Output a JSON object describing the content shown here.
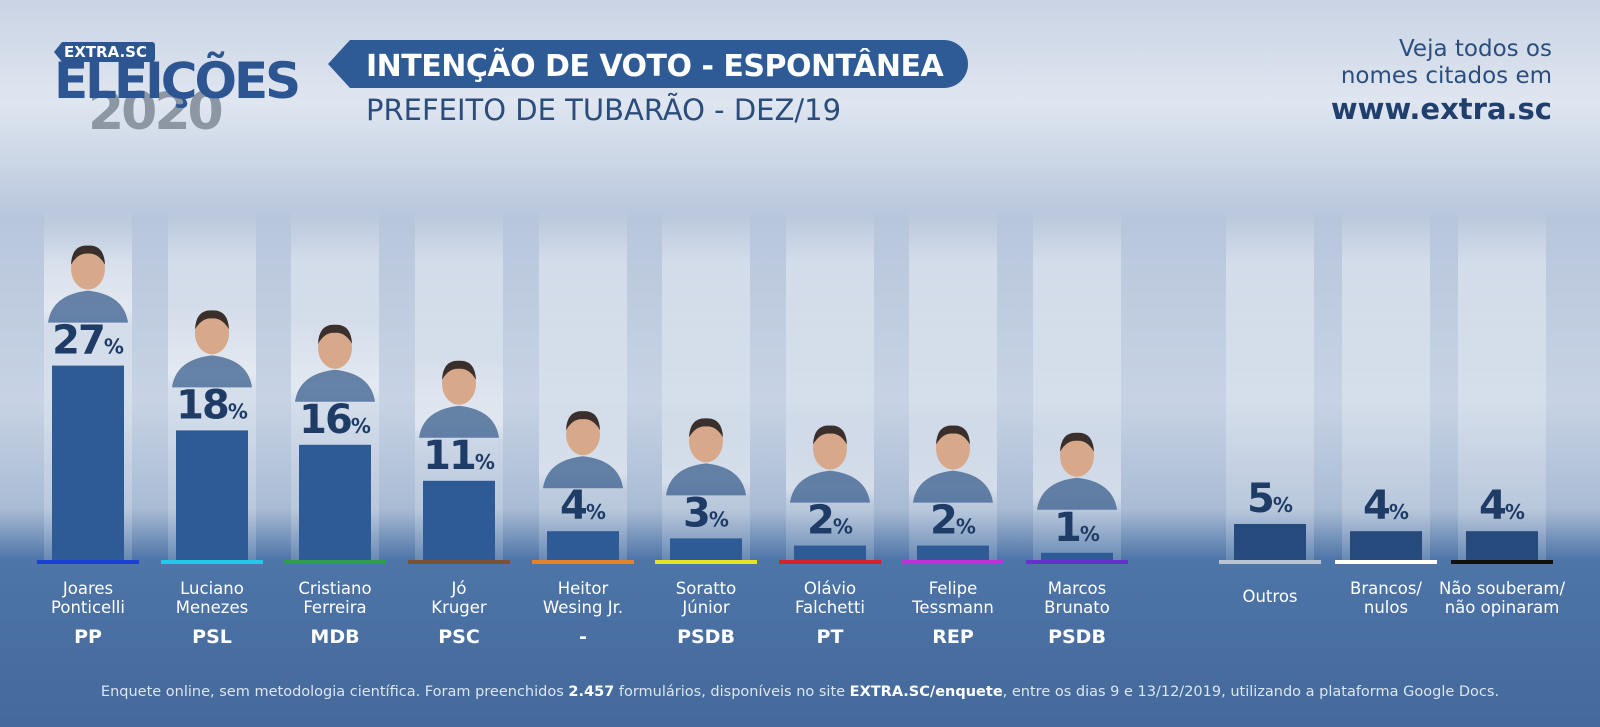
{
  "logo": {
    "tag": "EXTRA.SC",
    "word": "ELEIÇÕES",
    "year": "2020"
  },
  "header": {
    "title": "INTENÇÃO DE VOTO - ESPONTÂNEA",
    "subtitle": "PREFEITO DE TUBARÃO - DEZ/19"
  },
  "promo": {
    "line1": "Veja todos os",
    "line2": "nomes citados em",
    "url": "www.extra.sc"
  },
  "footnote": {
    "part1": "Enquete online, sem metodologia científica. Foram preenchidos ",
    "count": "2.457",
    "part2": " formulários, disponíveis no site ",
    "site": "EXTRA.SC/enquete",
    "part3": ", entre os dias 9 e 13/12/2019, utilizando a plataforma Google Docs."
  },
  "colors": {
    "bar": "#2e5b96",
    "bar_dark": "#264a7c",
    "label": "#1f3c66",
    "name": "#ffffff"
  },
  "chart_data": {
    "type": "bar",
    "title": "INTENÇÃO DE VOTO - ESPONTÂNEA",
    "subtitle": "PREFEITO DE TUBARÃO - DEZ/19",
    "unit": "%",
    "ylim": [
      0,
      30
    ],
    "bars": [
      {
        "name_lines": [
          "Joares",
          "Ponticelli"
        ],
        "party": "PP",
        "value": 27,
        "party_color": "#1a3fd6",
        "photo": true
      },
      {
        "name_lines": [
          "Luciano",
          "Menezes"
        ],
        "party": "PSL",
        "value": 18,
        "party_color": "#21c9e8",
        "photo": true
      },
      {
        "name_lines": [
          "Cristiano",
          "Ferreira"
        ],
        "party": "MDB",
        "value": 16,
        "party_color": "#2e9e4a",
        "photo": true
      },
      {
        "name_lines": [
          "Jó",
          "Kruger"
        ],
        "party": "PSC",
        "value": 11,
        "party_color": "#7a5233",
        "photo": true
      },
      {
        "name_lines": [
          "Heitor",
          "Wesing Jr."
        ],
        "party": "-",
        "value": 4,
        "party_color": "#e8822a",
        "photo": true
      },
      {
        "name_lines": [
          "Soratto",
          "Júnior"
        ],
        "party": "PSDB",
        "value": 3,
        "party_color": "#e6e21f",
        "photo": true
      },
      {
        "name_lines": [
          "Olávio",
          "Falchetti"
        ],
        "party": "PT",
        "value": 2,
        "party_color": "#d6202a",
        "photo": true
      },
      {
        "name_lines": [
          "Felipe",
          "Tessmann"
        ],
        "party": "REP",
        "value": 2,
        "party_color": "#c12fd6",
        "photo": true
      },
      {
        "name_lines": [
          "Marcos",
          "Brunato"
        ],
        "party": "PSDB",
        "value": 1,
        "party_color": "#6a2fd0",
        "photo": true
      },
      {
        "name_lines": [
          "Outros"
        ],
        "party": "",
        "value": 5,
        "party_color": "#b9c4d3",
        "photo": false
      },
      {
        "name_lines": [
          "Brancos/",
          "nulos"
        ],
        "party": "",
        "value": 4,
        "party_color": "#ffffff",
        "photo": false
      },
      {
        "name_lines": [
          "Não souberam/",
          "não opinaram"
        ],
        "party": "",
        "value": 4,
        "party_color": "#111111",
        "photo": false
      }
    ]
  }
}
